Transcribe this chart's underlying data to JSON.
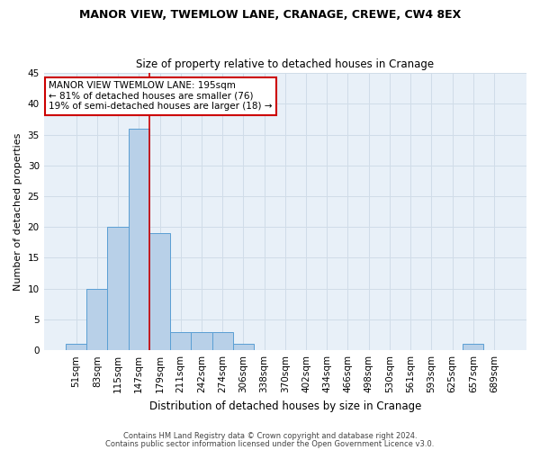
{
  "title": "MANOR VIEW, TWEMLOW LANE, CRANAGE, CREWE, CW4 8EX",
  "subtitle": "Size of property relative to detached houses in Cranage",
  "xlabel": "Distribution of detached houses by size in Cranage",
  "ylabel": "Number of detached properties",
  "bins": [
    "51sqm",
    "83sqm",
    "115sqm",
    "147sqm",
    "179sqm",
    "211sqm",
    "242sqm",
    "274sqm",
    "306sqm",
    "338sqm",
    "370sqm",
    "402sqm",
    "434sqm",
    "466sqm",
    "498sqm",
    "530sqm",
    "561sqm",
    "593sqm",
    "625sqm",
    "657sqm",
    "689sqm"
  ],
  "bar_values": [
    1,
    10,
    20,
    36,
    19,
    3,
    3,
    3,
    1,
    0,
    0,
    0,
    0,
    0,
    0,
    0,
    0,
    0,
    0,
    1,
    0
  ],
  "bar_color": "#b8d0e8",
  "bar_edge_color": "#5a9fd4",
  "vline_x_idx": 3.5,
  "vline_color": "#cc0000",
  "ylim": [
    0,
    45
  ],
  "yticks": [
    0,
    5,
    10,
    15,
    20,
    25,
    30,
    35,
    40,
    45
  ],
  "annotation_title": "MANOR VIEW TWEMLOW LANE: 195sqm",
  "annotation_line1": "← 81% of detached houses are smaller (76)",
  "annotation_line2": "19% of semi-detached houses are larger (18) →",
  "annotation_box_color": "#ffffff",
  "annotation_box_edge": "#cc0000",
  "footnote1": "Contains HM Land Registry data © Crown copyright and database right 2024.",
  "footnote2": "Contains public sector information licensed under the Open Government Licence v3.0.",
  "grid_color": "#d0dce8",
  "background_color": "#e8f0f8",
  "title_fontsize": 9,
  "subtitle_fontsize": 8.5,
  "xlabel_fontsize": 8.5,
  "ylabel_fontsize": 8,
  "tick_fontsize": 7.5,
  "footnote_fontsize": 6
}
